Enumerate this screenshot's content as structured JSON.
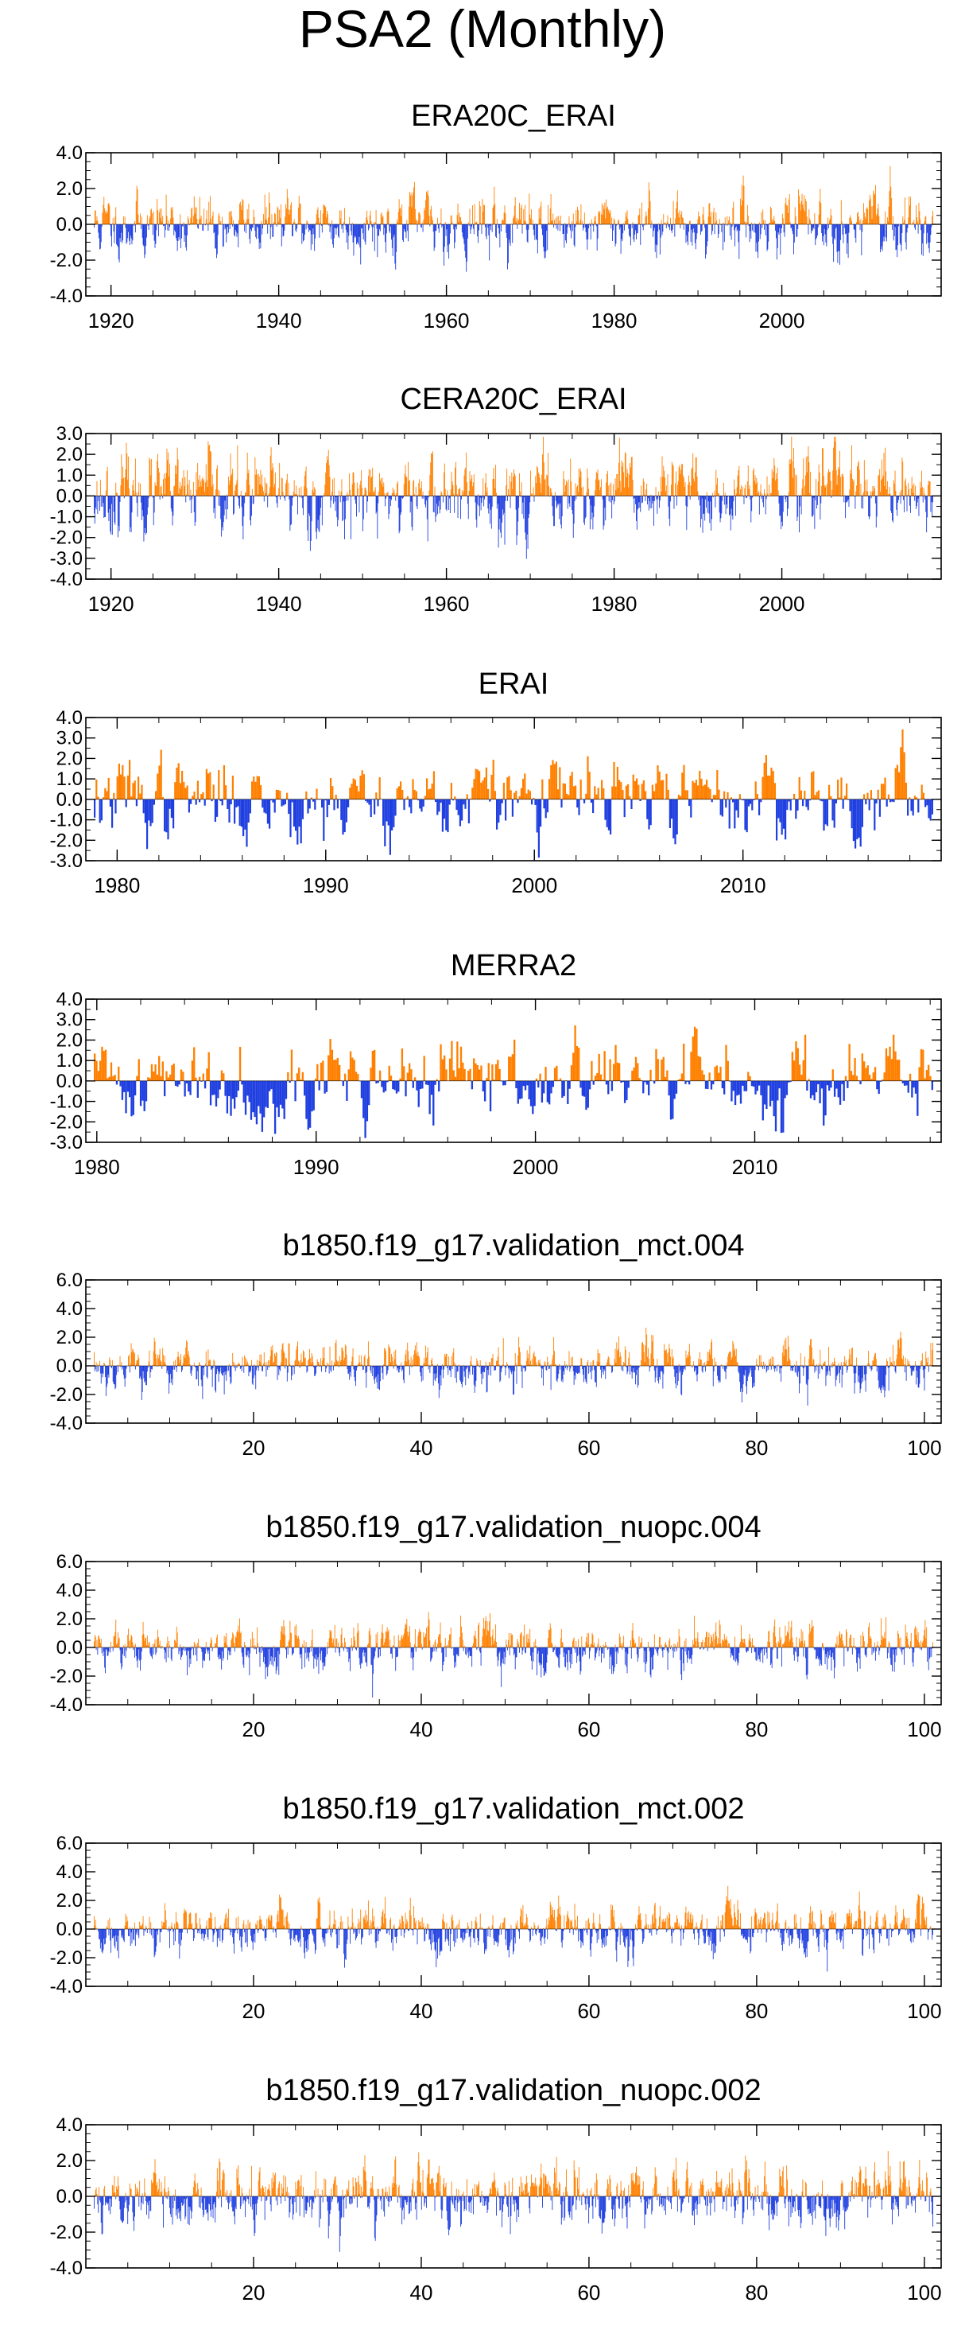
{
  "page": {
    "title": "PSA2 (Monthly)"
  },
  "colors": {
    "positive": "#ff8000",
    "negative": "#1f3fe0",
    "frame": "#000000"
  },
  "chart_data": [
    {
      "type": "bar",
      "title": "ERA20C_ERAI",
      "x_ticks": [
        1920,
        1940,
        1960,
        1980,
        2000
      ],
      "x_range": [
        1917,
        2019
      ],
      "y_ticks": [
        "4.0",
        "2.0",
        "0.0",
        "-2.0",
        "-4.0"
      ],
      "ylim": [
        -4,
        4
      ],
      "months": 1200,
      "amp": 0.8,
      "seed": 11
    },
    {
      "type": "bar",
      "title": "CERA20C_ERAI",
      "x_ticks": [
        1920,
        1940,
        1960,
        1980,
        2000
      ],
      "x_range": [
        1917,
        2019
      ],
      "y_ticks": [
        "3.0",
        "2.0",
        "1.0",
        "0.0",
        "-1.0",
        "-2.0",
        "-3.0",
        "-4.0"
      ],
      "ylim": [
        -4,
        3
      ],
      "months": 1200,
      "amp": 0.9,
      "seed": 23
    },
    {
      "type": "bar",
      "title": "ERAI",
      "x_ticks": [
        1980,
        1990,
        2000,
        2010
      ],
      "x_range": [
        1978.5,
        2019.5
      ],
      "y_ticks": [
        "4.0",
        "3.0",
        "2.0",
        "1.0",
        "0.0",
        "-1.0",
        "-2.0",
        "-3.0"
      ],
      "ylim": [
        -3,
        4
      ],
      "months": 480,
      "amp": 0.95,
      "seed": 37
    },
    {
      "type": "bar",
      "title": "MERRA2",
      "x_ticks": [
        1980,
        1990,
        2000,
        2010
      ],
      "x_range": [
        1979.5,
        2018.5
      ],
      "y_ticks": [
        "4.0",
        "3.0",
        "2.0",
        "1.0",
        "0.0",
        "-1.0",
        "-2.0",
        "-3.0"
      ],
      "ylim": [
        -3,
        4
      ],
      "months": 456,
      "amp": 0.95,
      "seed": 41
    },
    {
      "type": "bar",
      "title": "b1850.f19_g17.validation_mct.004",
      "x_ticks": [
        20,
        40,
        60,
        80,
        100
      ],
      "x_range": [
        0,
        102
      ],
      "y_ticks": [
        "6.0",
        "4.0",
        "2.0",
        "0.0",
        "-2.0",
        "-4.0"
      ],
      "ylim": [
        -4,
        6
      ],
      "months": 1200,
      "amp": 0.8,
      "seed": 53
    },
    {
      "type": "bar",
      "title": "b1850.f19_g17.validation_nuopc.004",
      "x_ticks": [
        20,
        40,
        60,
        80,
        100
      ],
      "x_range": [
        0,
        102
      ],
      "y_ticks": [
        "6.0",
        "4.0",
        "2.0",
        "0.0",
        "-2.0",
        "-4.0"
      ],
      "ylim": [
        -4,
        6
      ],
      "months": 1200,
      "amp": 0.8,
      "seed": 61
    },
    {
      "type": "bar",
      "title": "b1850.f19_g17.validation_mct.002",
      "x_ticks": [
        20,
        40,
        60,
        80,
        100
      ],
      "x_range": [
        0,
        102
      ],
      "y_ticks": [
        "6.0",
        "4.0",
        "2.0",
        "0.0",
        "-2.0",
        "-4.0"
      ],
      "ylim": [
        -4,
        6
      ],
      "months": 1200,
      "amp": 0.8,
      "seed": 73
    },
    {
      "type": "bar",
      "title": "b1850.f19_g17.validation_nuopc.002",
      "x_ticks": [
        20,
        40,
        60,
        80,
        100
      ],
      "x_range": [
        0,
        102
      ],
      "y_ticks": [
        "4.0",
        "2.0",
        "0.0",
        "-2.0",
        "-4.0"
      ],
      "ylim": [
        -4,
        4
      ],
      "months": 1200,
      "amp": 0.85,
      "seed": 89
    }
  ]
}
